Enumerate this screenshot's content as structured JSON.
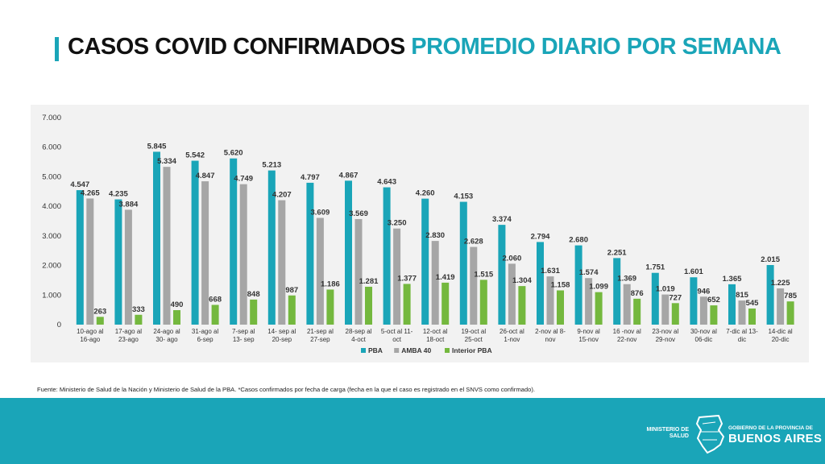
{
  "title": {
    "part1": "CASOS COVID CONFIRMADOS",
    "part2": "PROMEDIO DIARIO POR SEMANA"
  },
  "chart_data": {
    "type": "bar",
    "categories": [
      [
        "10-ago al",
        "16-ago"
      ],
      [
        "17-ago al",
        "23-ago"
      ],
      [
        "24-ago al",
        "30- ago"
      ],
      [
        "31-ago al",
        "6-sep"
      ],
      [
        "7-sep al",
        "13- sep"
      ],
      [
        "14- sep al",
        "20-sep"
      ],
      [
        "21-sep al",
        "27-sep"
      ],
      [
        "28-sep al",
        "4-oct"
      ],
      [
        "5-oct al 11-",
        "oct"
      ],
      [
        "12-oct al",
        "18-oct"
      ],
      [
        "19-oct al",
        "25-oct"
      ],
      [
        "26-oct al",
        "1-nov"
      ],
      [
        "2-nov al 8-",
        "nov"
      ],
      [
        "9-nov al",
        "15-nov"
      ],
      [
        "16 -nov al",
        "22-nov"
      ],
      [
        "23-nov al",
        "29-nov"
      ],
      [
        "30-nov al",
        "06-dic"
      ],
      [
        "7-dic al 13-",
        "dic"
      ],
      [
        "14-dic al",
        "20-dic"
      ]
    ],
    "series": [
      {
        "name": "PBA",
        "color": "#1aa5b8",
        "values": [
          4547,
          4235,
          5845,
          5542,
          5620,
          5213,
          4797,
          4867,
          4643,
          4260,
          4153,
          3374,
          2794,
          2680,
          2251,
          1751,
          1601,
          1365,
          2015
        ]
      },
      {
        "name": "AMBA 40",
        "color": "#a6a6a6",
        "values": [
          4265,
          3884,
          5334,
          4847,
          4749,
          4207,
          3609,
          3569,
          3250,
          2830,
          2628,
          2060,
          1631,
          1574,
          1369,
          1019,
          946,
          815,
          1225
        ]
      },
      {
        "name": "Interior PBA",
        "color": "#74b83e",
        "values": [
          263,
          333,
          490,
          668,
          848,
          987,
          1186,
          1281,
          1377,
          1419,
          1515,
          1304,
          1158,
          1099,
          876,
          727,
          652,
          545,
          785
        ]
      }
    ],
    "ylim": [
      0,
      7000
    ],
    "yticks": [
      0,
      1000,
      2000,
      3000,
      4000,
      5000,
      6000,
      7000
    ],
    "ytick_labels": [
      "0",
      "1.000",
      "2.000",
      "3.000",
      "4.000",
      "5.000",
      "6.000",
      "7.000"
    ],
    "legend_position": "bottom",
    "grid": false
  },
  "source": "Fuente: Ministerio de Salud de la Nación y Ministerio de Salud de la PBA. *Casos confirmados por fecha de carga (fecha en la que el caso es registrado en el SNVS como confirmado).",
  "footer": {
    "ministerio_line1": "MINISTERIO DE",
    "ministerio_line2": "SALUD",
    "gobierno": "GOBIERNO DE LA PROVINCIA DE",
    "buenos_aires": "BUENOS AIRES",
    "logo_icon": "province-map-icon"
  },
  "colors": {
    "accent": "#1aa5b8",
    "gray": "#a6a6a6",
    "green": "#74b83e"
  }
}
